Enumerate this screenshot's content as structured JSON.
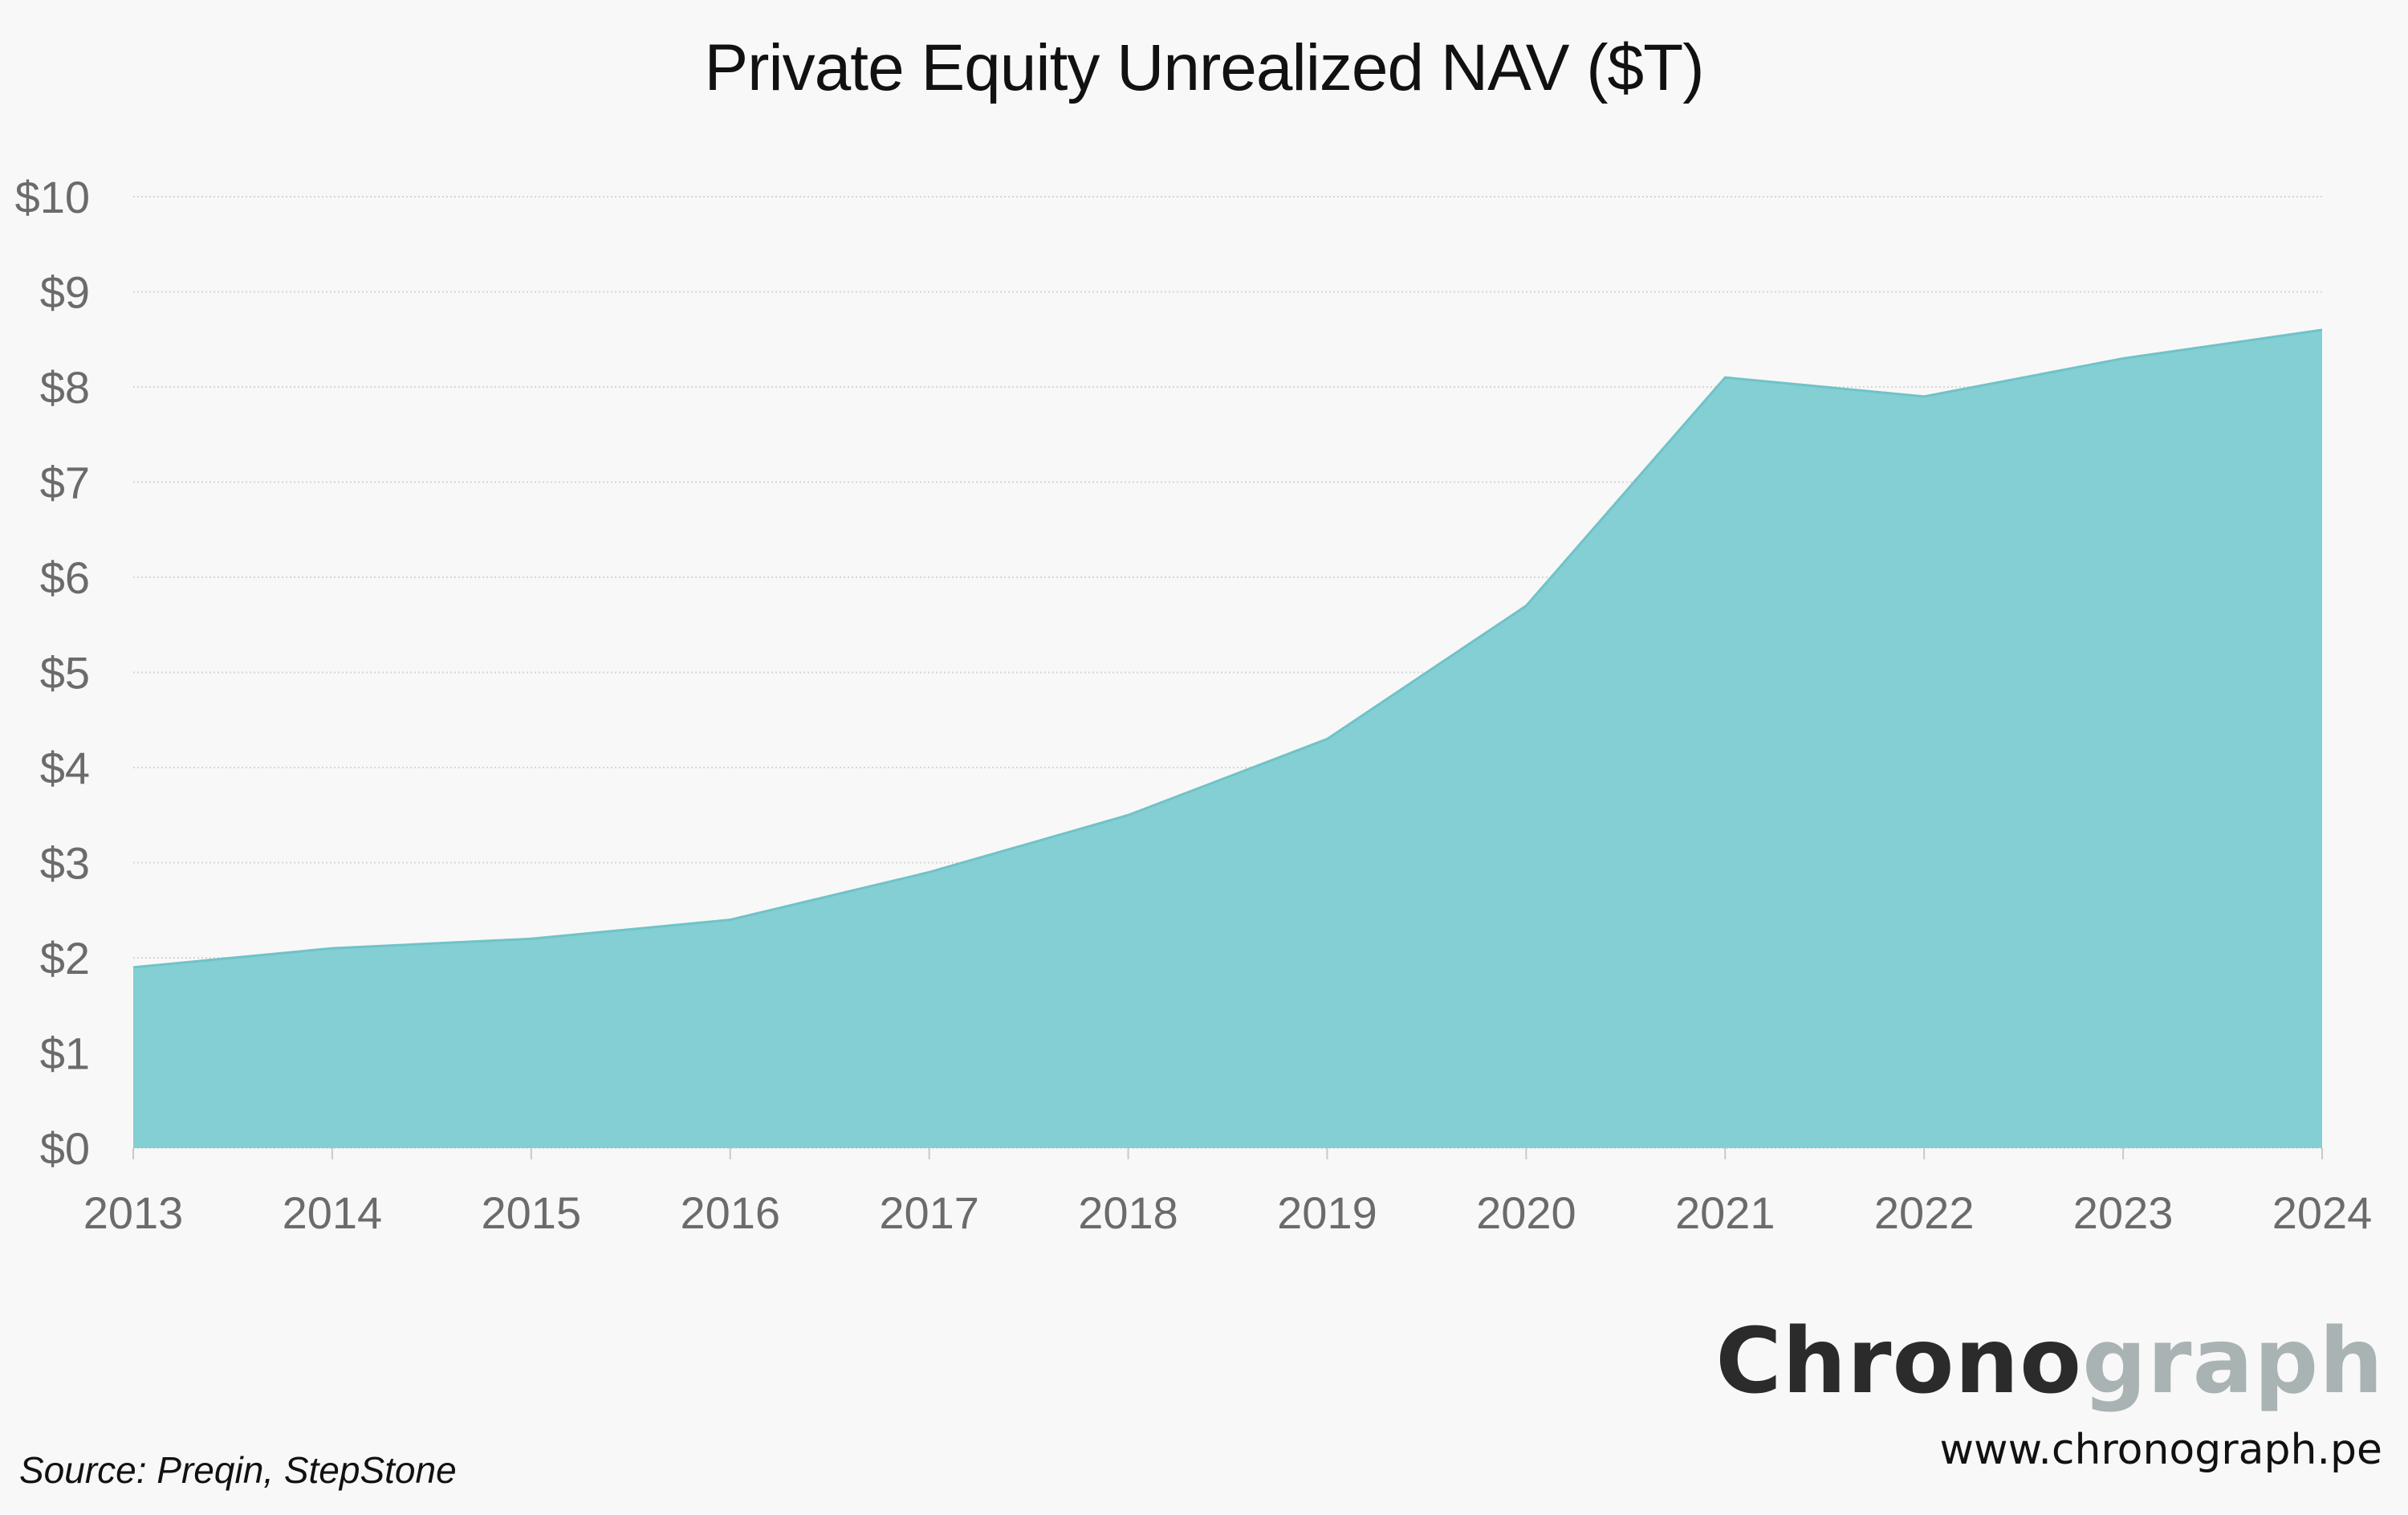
{
  "chart_data": {
    "type": "area",
    "title": "Private Equity Unrealized NAV ($T)",
    "xlabel": "",
    "ylabel": "",
    "categories": [
      "2013",
      "2014",
      "2015",
      "2016",
      "2017",
      "2018",
      "2019",
      "2020",
      "2021",
      "2022",
      "2023",
      "2024"
    ],
    "series": [
      {
        "values": [
          1.9,
          2.1,
          2.2,
          2.4,
          2.9,
          3.5,
          4.3,
          5.7,
          8.1,
          7.9,
          8.3,
          8.6
        ]
      }
    ],
    "ylim": [
      0,
      10
    ],
    "yticks": [
      0,
      1,
      2,
      3,
      4,
      5,
      6,
      7,
      8,
      9,
      10
    ],
    "ytick_labels": [
      "$0",
      "$1",
      "$2",
      "$3",
      "$4",
      "$5",
      "$6",
      "$7",
      "$8",
      "$9",
      "$10"
    ],
    "grid": true,
    "legend": "none",
    "fill_color": "#84cfd3",
    "line_color": "#6fc3c8",
    "grid_color": "#d6d6d6",
    "tick_color": "#6b6b6b"
  },
  "footer": {
    "source": "Source: Preqin, StepStone",
    "logo_part1": "Chrono",
    "logo_part2": "graph",
    "url": "www.chronograph.pe"
  }
}
